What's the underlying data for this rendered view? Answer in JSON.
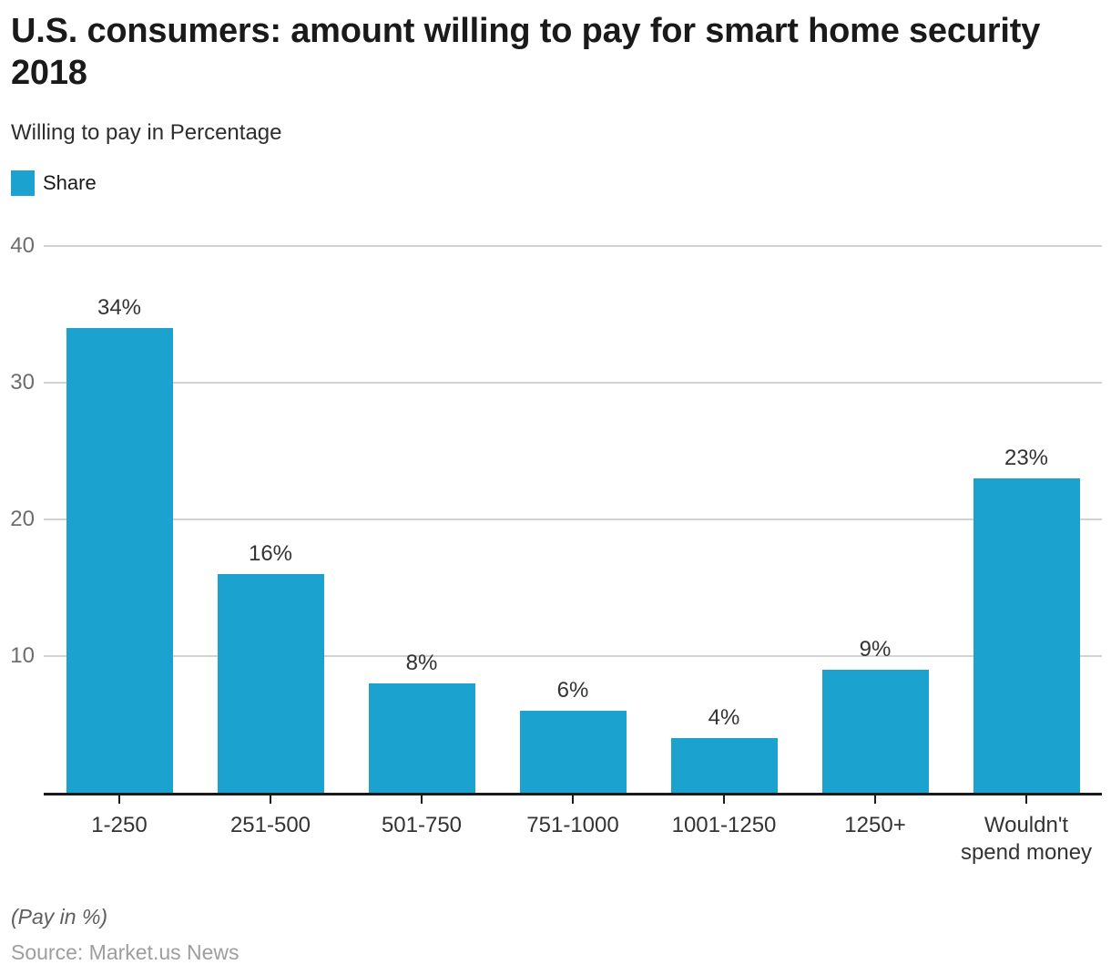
{
  "header": {
    "title": "U.S. consumers: amount willing to pay for smart home security 2018",
    "subtitle": "Willing to pay in Percentage"
  },
  "legend": {
    "items": [
      {
        "label": "Share"
      }
    ]
  },
  "colors": {
    "bar": "#1BA2CF",
    "gridline": "#d2d2d2",
    "axis": "#1a1a1a"
  },
  "chart_data": {
    "type": "bar",
    "title": "U.S. consumers: amount willing to pay for smart home security 2018",
    "subtitle": "Willing to pay in Percentage",
    "series_name": "Share",
    "categories": [
      "1-250",
      "251-500",
      "501-750",
      "751-1000",
      "1001-1250",
      "1250+",
      "Wouldn't spend money"
    ],
    "values": [
      34,
      16,
      8,
      6,
      4,
      9,
      23
    ],
    "value_suffix": "%",
    "xlabel": "",
    "ylabel": "",
    "ylim": [
      0,
      42
    ],
    "y_ticks": [
      40,
      30,
      20,
      10
    ],
    "grid": "horizontal",
    "legend_position": "top-left"
  },
  "footer": {
    "note": "(Pay in %)",
    "source": "Source: Market.us News"
  }
}
